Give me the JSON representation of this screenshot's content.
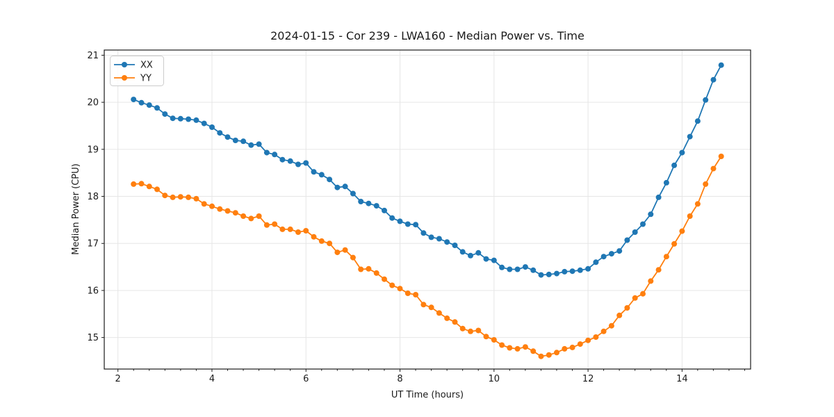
{
  "page": {
    "background": "#ffffff"
  },
  "chart_data": {
    "type": "line",
    "title": "2024-01-15 - Cor 239 - LWA160 - Median Power vs. Time",
    "xlabel": "UT Time (hours)",
    "ylabel": "Median Power (CPU)",
    "xlim": [
      1.709,
      15.458
    ],
    "ylim": [
      14.33,
      21.11
    ],
    "xticks": [
      2,
      4,
      6,
      8,
      10,
      12,
      14
    ],
    "yticks": [
      15,
      16,
      17,
      18,
      19,
      20,
      21
    ],
    "x_minor_tick_step": 0.3333,
    "grid": "major-both",
    "marker": "circle",
    "marker_radius": 4,
    "legend": {
      "position": "upper-left",
      "entries": [
        "XX",
        "YY"
      ]
    },
    "x": [
      2.333,
      2.5,
      2.667,
      2.833,
      3,
      3.167,
      3.333,
      3.5,
      3.667,
      3.833,
      4,
      4.167,
      4.333,
      4.5,
      4.667,
      4.833,
      5,
      5.167,
      5.333,
      5.5,
      5.667,
      5.833,
      6,
      6.167,
      6.333,
      6.5,
      6.667,
      6.833,
      7,
      7.167,
      7.333,
      7.5,
      7.667,
      7.833,
      8,
      8.167,
      8.333,
      8.5,
      8.667,
      8.833,
      9,
      9.167,
      9.333,
      9.5,
      9.667,
      9.833,
      10,
      10.167,
      10.333,
      10.5,
      10.667,
      10.833,
      11,
      11.167,
      11.333,
      11.5,
      11.667,
      11.833,
      12,
      12.167,
      12.333,
      12.5,
      12.667,
      12.833,
      13,
      13.167,
      13.333,
      13.5,
      13.667,
      13.833,
      14,
      14.167,
      14.333,
      14.5,
      14.667,
      14.833
    ],
    "series": [
      {
        "name": "XX",
        "color": "#1f77b4",
        "values": [
          20.06,
          19.99,
          19.94,
          19.88,
          19.75,
          19.66,
          19.65,
          19.64,
          19.62,
          19.55,
          19.47,
          19.35,
          19.26,
          19.19,
          19.17,
          19.09,
          19.11,
          18.93,
          18.89,
          18.78,
          18.75,
          18.68,
          18.71,
          18.52,
          18.46,
          18.36,
          18.19,
          18.21,
          18.06,
          17.89,
          17.85,
          17.8,
          17.7,
          17.54,
          17.47,
          17.41,
          17.4,
          17.22,
          17.13,
          17.1,
          17.03,
          16.96,
          16.82,
          16.74,
          16.8,
          16.67,
          16.64,
          16.49,
          16.45,
          16.45,
          16.5,
          16.43,
          16.33,
          16.34,
          16.36,
          16.4,
          16.41,
          16.43,
          16.46,
          16.6,
          16.72,
          16.78,
          16.84,
          17.07,
          17.24,
          17.41,
          17.62,
          17.98,
          18.29,
          18.66,
          18.93,
          19.27,
          19.6,
          20.05,
          20.48,
          20.79
        ]
      },
      {
        "name": "YY",
        "color": "#ff7f0e",
        "values": [
          18.26,
          18.27,
          18.21,
          18.15,
          18.02,
          17.98,
          17.99,
          17.98,
          17.95,
          17.84,
          17.79,
          17.73,
          17.69,
          17.65,
          17.58,
          17.53,
          17.58,
          17.39,
          17.41,
          17.3,
          17.3,
          17.24,
          17.27,
          17.14,
          17.05,
          17.0,
          16.81,
          16.86,
          16.7,
          16.45,
          16.46,
          16.37,
          16.24,
          16.11,
          16.04,
          15.94,
          15.91,
          15.7,
          15.64,
          15.52,
          15.41,
          15.33,
          15.19,
          15.13,
          15.15,
          15.02,
          14.95,
          14.84,
          14.78,
          14.76,
          14.8,
          14.71,
          14.6,
          14.63,
          14.68,
          14.76,
          14.79,
          14.86,
          14.94,
          15.01,
          15.13,
          15.25,
          15.47,
          15.63,
          15.84,
          15.93,
          16.2,
          16.44,
          16.72,
          16.99,
          17.26,
          17.58,
          17.84,
          18.26,
          18.59,
          18.85
        ]
      }
    ]
  }
}
